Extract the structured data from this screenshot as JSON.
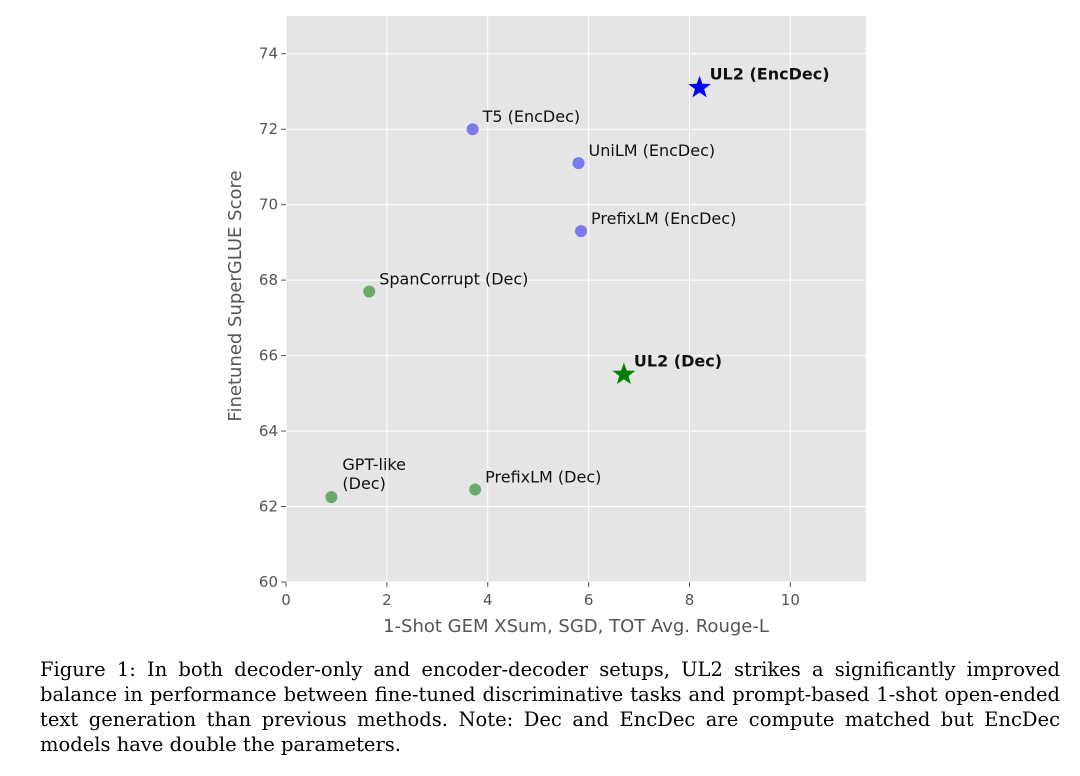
{
  "chart_data": {
    "type": "scatter",
    "xlabel": "1-Shot GEM XSum, SGD, TOT Avg. Rouge-L",
    "ylabel": "Finetuned SuperGLUE Score",
    "xlim": [
      0,
      11.5
    ],
    "ylim": [
      60,
      75
    ],
    "xticks": [
      0,
      2,
      4,
      6,
      8,
      10
    ],
    "yticks": [
      60,
      62,
      64,
      66,
      68,
      70,
      72,
      74
    ],
    "grid": true,
    "background": "#e5e5e5",
    "points": [
      {
        "label": [
          "T5 (EncDec)"
        ],
        "x": 3.7,
        "y": 72.0,
        "marker": "circle",
        "color": "#7b7bef",
        "bold": false,
        "dx": 10,
        "dy": -7
      },
      {
        "label": [
          "UniLM (EncDec)"
        ],
        "x": 5.8,
        "y": 71.1,
        "marker": "circle",
        "color": "#7b7bef",
        "bold": false,
        "dx": 10,
        "dy": -7
      },
      {
        "label": [
          "PrefixLM (EncDec)"
        ],
        "x": 5.85,
        "y": 69.3,
        "marker": "circle",
        "color": "#7b7bef",
        "bold": false,
        "dx": 10,
        "dy": -7
      },
      {
        "label": [
          "UL2 (EncDec)"
        ],
        "x": 8.2,
        "y": 73.1,
        "marker": "star",
        "color": "#0000ff",
        "bold": true,
        "dx": 10,
        "dy": -8
      },
      {
        "label": [
          "SpanCorrupt (Dec)"
        ],
        "x": 1.65,
        "y": 67.7,
        "marker": "circle",
        "color": "#6aaa6a",
        "bold": false,
        "dx": 10,
        "dy": -7
      },
      {
        "label": [
          "UL2 (Dec)"
        ],
        "x": 6.7,
        "y": 65.5,
        "marker": "star",
        "color": "#008000",
        "bold": true,
        "dx": 10,
        "dy": -8
      },
      {
        "label": [
          "GPT-like",
          "(Dec)"
        ],
        "x": 0.9,
        "y": 62.25,
        "marker": "circle",
        "color": "#6aaa6a",
        "bold": false,
        "dx": 11,
        "dy": -27
      },
      {
        "label": [
          "PrefixLM (Dec)"
        ],
        "x": 3.75,
        "y": 62.45,
        "marker": "circle",
        "color": "#6aaa6a",
        "bold": false,
        "dx": 10,
        "dy": -7
      }
    ]
  },
  "caption": "Figure 1: In both decoder-only and encoder-decoder setups, UL2 strikes a significantly improved balance in performance between fine-tuned discriminative tasks and prompt-based 1-shot open-ended text generation than previous methods. Note: Dec and EncDec are compute matched but EncDec models have double the parameters."
}
